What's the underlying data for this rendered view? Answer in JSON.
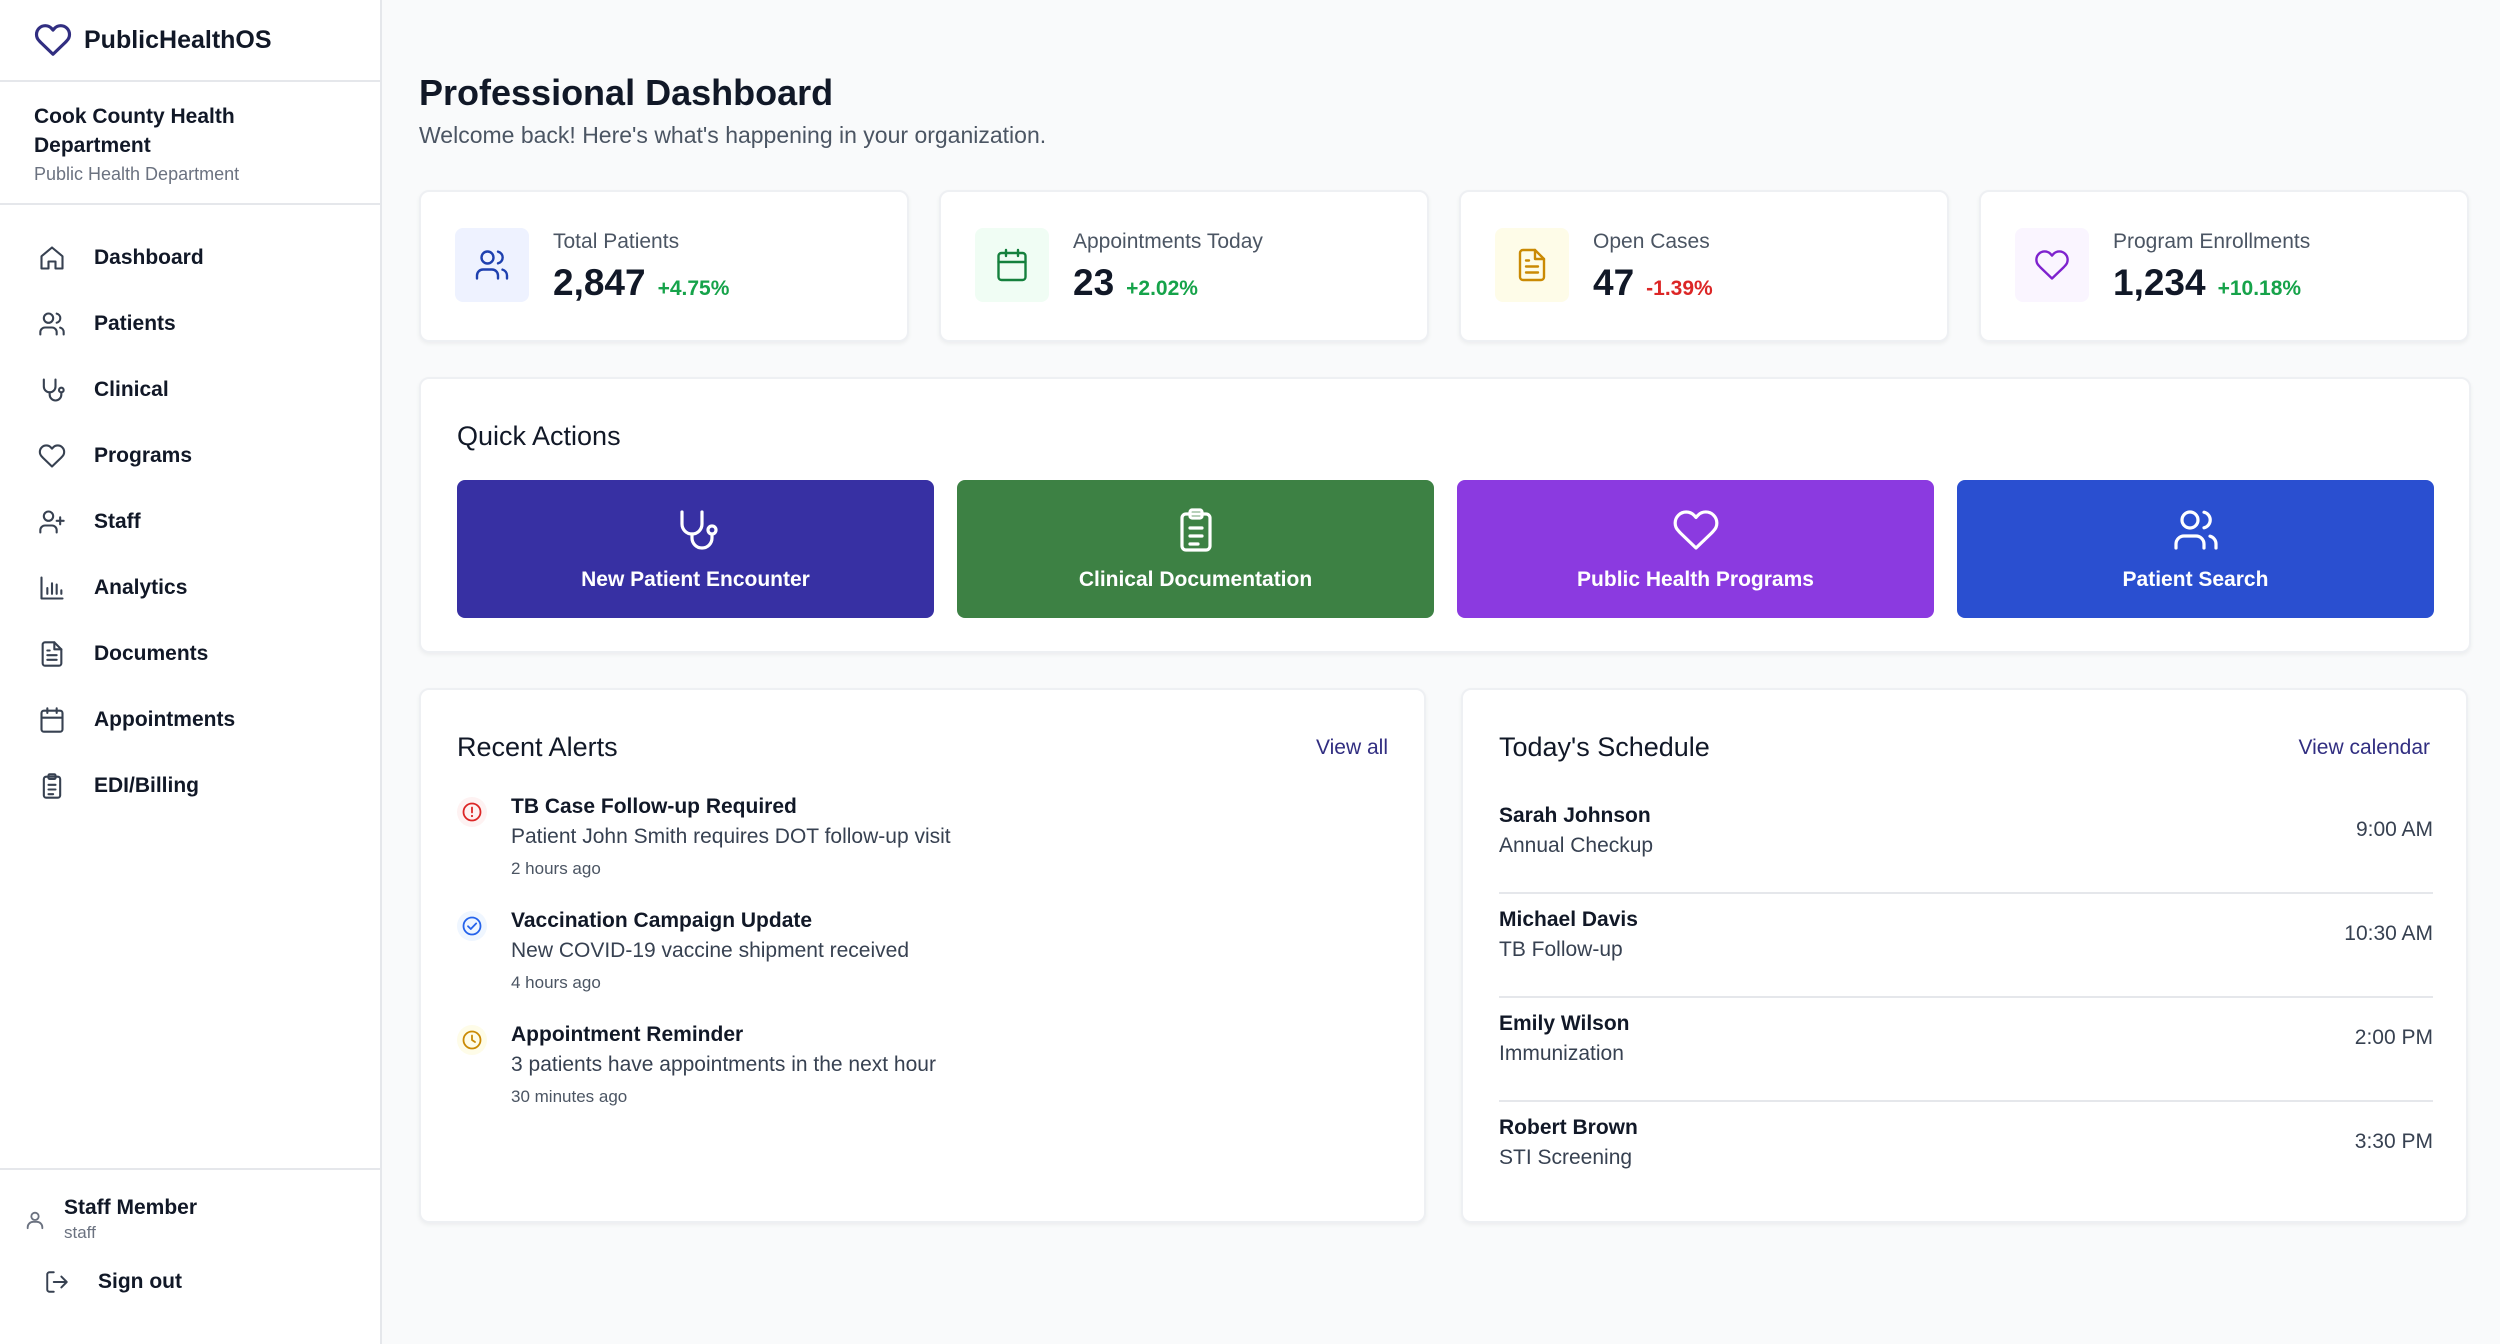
{
  "app": {
    "name": "PublicHealthOS"
  },
  "org": {
    "name": "Cook County Health Department",
    "type": "Public Health Department"
  },
  "nav": [
    {
      "label": "Dashboard",
      "icon": "home-icon"
    },
    {
      "label": "Patients",
      "icon": "users-icon"
    },
    {
      "label": "Clinical",
      "icon": "stethoscope-icon"
    },
    {
      "label": "Programs",
      "icon": "heart-icon"
    },
    {
      "label": "Staff",
      "icon": "user-plus-icon"
    },
    {
      "label": "Analytics",
      "icon": "bar-chart-icon"
    },
    {
      "label": "Documents",
      "icon": "document-icon"
    },
    {
      "label": "Appointments",
      "icon": "calendar-icon"
    },
    {
      "label": "EDI/Billing",
      "icon": "clipboard-icon"
    }
  ],
  "user": {
    "name": "Staff Member",
    "role": "staff"
  },
  "signout_label": "Sign out",
  "page": {
    "title": "Professional Dashboard",
    "subtitle": "Welcome back! Here's what's happening in your organization."
  },
  "stats": [
    {
      "label": "Total Patients",
      "value": "2,847",
      "change": "+4.75%",
      "trend": "up",
      "icon": "users-icon",
      "color": "#1e40af",
      "bg": "#eef2ff"
    },
    {
      "label": "Appointments Today",
      "value": "23",
      "change": "+2.02%",
      "trend": "up",
      "icon": "calendar-icon",
      "color": "#15803d",
      "bg": "#f0fdf4"
    },
    {
      "label": "Open Cases",
      "value": "47",
      "change": "-1.39%",
      "trend": "down",
      "icon": "document-icon",
      "color": "#ca8a04",
      "bg": "#fefce8"
    },
    {
      "label": "Program Enrollments",
      "value": "1,234",
      "change": "+10.18%",
      "trend": "up",
      "icon": "heart-icon",
      "color": "#7e22ce",
      "bg": "#faf5ff"
    }
  ],
  "quick_actions": {
    "title": "Quick Actions",
    "items": [
      {
        "label": "New Patient Encounter",
        "icon": "stethoscope-icon",
        "color": "#3730a3"
      },
      {
        "label": "Clinical Documentation",
        "icon": "clipboard-icon",
        "color": "#3d8144"
      },
      {
        "label": "Public Health Programs",
        "icon": "heart-icon",
        "color": "#8b3ae0"
      },
      {
        "label": "Patient Search",
        "icon": "users-icon",
        "color": "#2a4fd0"
      }
    ]
  },
  "alerts": {
    "title": "Recent Alerts",
    "link": "View all",
    "items": [
      {
        "title": "TB Case Follow-up Required",
        "desc": "Patient John Smith requires DOT follow-up visit",
        "time": "2 hours ago",
        "icon": "alert-circle-icon",
        "color": "#dc2626",
        "bg": "#fef2f2"
      },
      {
        "title": "Vaccination Campaign Update",
        "desc": "New COVID-19 vaccine shipment received",
        "time": "4 hours ago",
        "icon": "check-circle-icon",
        "color": "#2563eb",
        "bg": "#eff6ff"
      },
      {
        "title": "Appointment Reminder",
        "desc": "3 patients have appointments in the next hour",
        "time": "30 minutes ago",
        "icon": "clock-icon",
        "color": "#ca8a04",
        "bg": "#fefce8"
      }
    ]
  },
  "schedule": {
    "title": "Today's Schedule",
    "link": "View calendar",
    "items": [
      {
        "name": "Sarah Johnson",
        "type": "Annual Checkup",
        "time": "9:00 AM"
      },
      {
        "name": "Michael Davis",
        "type": "TB Follow-up",
        "time": "10:30 AM"
      },
      {
        "name": "Emily Wilson",
        "type": "Immunization",
        "time": "2:00 PM"
      },
      {
        "name": "Robert Brown",
        "type": "STI Screening",
        "time": "3:30 PM"
      }
    ]
  }
}
